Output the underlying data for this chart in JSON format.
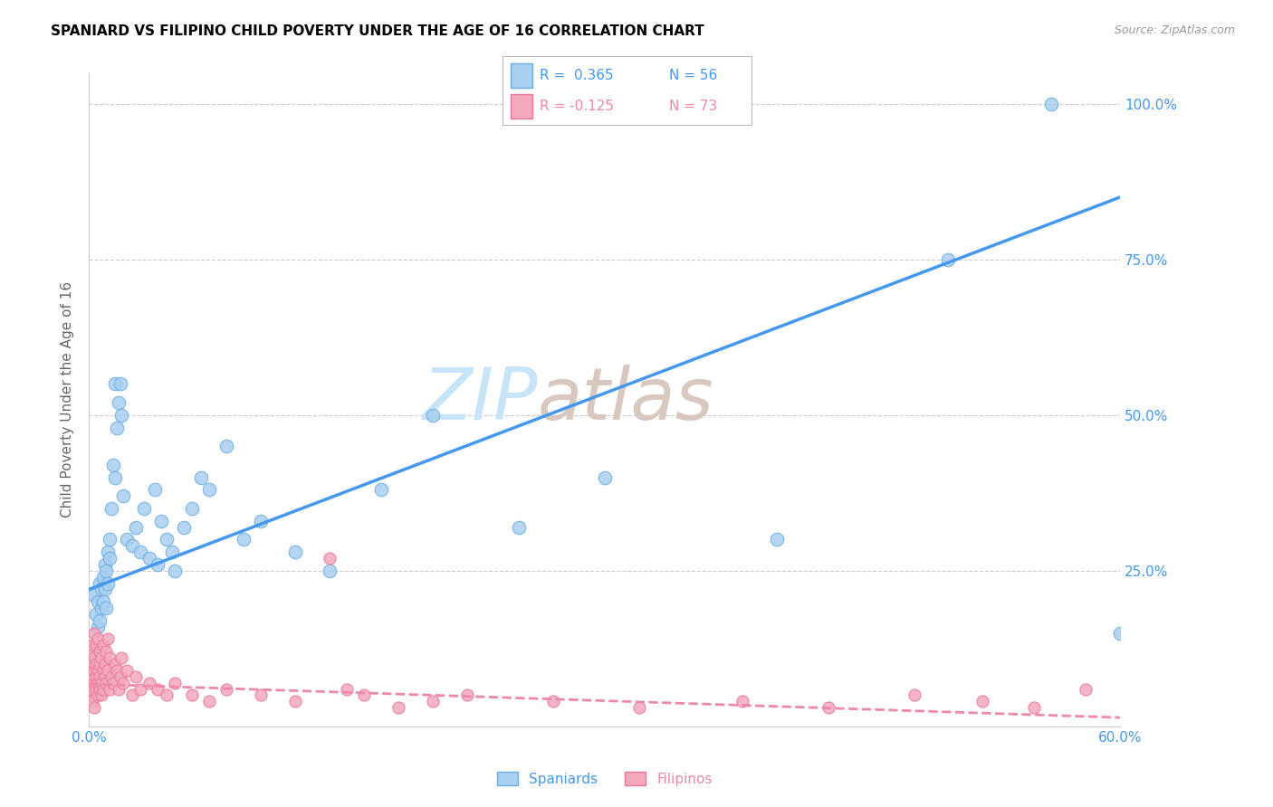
{
  "title": "SPANIARD VS FILIPINO CHILD POVERTY UNDER THE AGE OF 16 CORRELATION CHART",
  "source": "Source: ZipAtlas.com",
  "ylabel": "Child Poverty Under the Age of 16",
  "xlim": [
    0.0,
    0.6
  ],
  "ylim": [
    0.0,
    1.05
  ],
  "xticks": [
    0.0,
    0.1,
    0.2,
    0.3,
    0.4,
    0.5,
    0.6
  ],
  "xticklabels": [
    "0.0%",
    "",
    "",
    "",
    "",
    "",
    "60.0%"
  ],
  "yticks": [
    0.0,
    0.25,
    0.5,
    0.75,
    1.0
  ],
  "yticklabels": [
    "",
    "25.0%",
    "50.0%",
    "75.0%",
    "100.0%"
  ],
  "legend_blue_r": "R =  0.365",
  "legend_blue_n": "N = 56",
  "legend_pink_r": "R = -0.125",
  "legend_pink_n": "N = 73",
  "legend_labels": [
    "Spaniards",
    "Filipinos"
  ],
  "blue_color": "#A8CEF0",
  "pink_color": "#F4A8BC",
  "blue_edge_color": "#6AAEE0",
  "pink_edge_color": "#E87898",
  "blue_line_color": "#4499EE",
  "pink_line_color": "#EE88AA",
  "watermark_zip_color": "#C8E4F8",
  "watermark_atlas_color": "#D8C8C0",
  "blue_intercept": 0.22,
  "blue_slope": 1.05,
  "pink_intercept": 0.068,
  "pink_slope": -0.09,
  "spaniards_x": [
    0.003,
    0.004,
    0.005,
    0.005,
    0.006,
    0.006,
    0.007,
    0.007,
    0.008,
    0.008,
    0.009,
    0.009,
    0.01,
    0.01,
    0.011,
    0.011,
    0.012,
    0.012,
    0.013,
    0.014,
    0.015,
    0.015,
    0.016,
    0.017,
    0.018,
    0.019,
    0.02,
    0.022,
    0.025,
    0.027,
    0.03,
    0.032,
    0.035,
    0.038,
    0.04,
    0.042,
    0.045,
    0.048,
    0.05,
    0.055,
    0.06,
    0.065,
    0.07,
    0.08,
    0.09,
    0.1,
    0.12,
    0.14,
    0.17,
    0.2,
    0.25,
    0.3,
    0.4,
    0.5,
    0.56,
    0.6
  ],
  "spaniards_y": [
    0.21,
    0.18,
    0.2,
    0.16,
    0.23,
    0.17,
    0.22,
    0.19,
    0.24,
    0.2,
    0.26,
    0.22,
    0.25,
    0.19,
    0.28,
    0.23,
    0.3,
    0.27,
    0.35,
    0.42,
    0.4,
    0.55,
    0.48,
    0.52,
    0.55,
    0.5,
    0.37,
    0.3,
    0.29,
    0.32,
    0.28,
    0.35,
    0.27,
    0.38,
    0.26,
    0.33,
    0.3,
    0.28,
    0.25,
    0.32,
    0.35,
    0.4,
    0.38,
    0.45,
    0.3,
    0.33,
    0.28,
    0.25,
    0.38,
    0.5,
    0.32,
    0.4,
    0.3,
    0.75,
    1.0,
    0.15
  ],
  "filipinos_x": [
    0.001,
    0.001,
    0.001,
    0.002,
    0.002,
    0.002,
    0.002,
    0.003,
    0.003,
    0.003,
    0.003,
    0.003,
    0.004,
    0.004,
    0.004,
    0.004,
    0.005,
    0.005,
    0.005,
    0.005,
    0.006,
    0.006,
    0.006,
    0.006,
    0.007,
    0.007,
    0.007,
    0.008,
    0.008,
    0.008,
    0.009,
    0.009,
    0.01,
    0.01,
    0.011,
    0.011,
    0.012,
    0.012,
    0.013,
    0.014,
    0.015,
    0.016,
    0.017,
    0.018,
    0.019,
    0.02,
    0.022,
    0.025,
    0.027,
    0.03,
    0.035,
    0.04,
    0.045,
    0.05,
    0.06,
    0.07,
    0.08,
    0.1,
    0.12,
    0.15,
    0.18,
    0.22,
    0.27,
    0.32,
    0.38,
    0.43,
    0.48,
    0.52,
    0.55,
    0.58,
    0.14,
    0.16,
    0.2
  ],
  "filipinos_y": [
    0.05,
    0.08,
    0.12,
    0.06,
    0.1,
    0.04,
    0.13,
    0.07,
    0.09,
    0.11,
    0.03,
    0.15,
    0.06,
    0.1,
    0.08,
    0.13,
    0.05,
    0.09,
    0.07,
    0.14,
    0.06,
    0.1,
    0.08,
    0.12,
    0.07,
    0.11,
    0.05,
    0.09,
    0.06,
    0.13,
    0.08,
    0.1,
    0.12,
    0.07,
    0.09,
    0.14,
    0.06,
    0.11,
    0.08,
    0.07,
    0.1,
    0.09,
    0.06,
    0.08,
    0.11,
    0.07,
    0.09,
    0.05,
    0.08,
    0.06,
    0.07,
    0.06,
    0.05,
    0.07,
    0.05,
    0.04,
    0.06,
    0.05,
    0.04,
    0.06,
    0.03,
    0.05,
    0.04,
    0.03,
    0.04,
    0.03,
    0.05,
    0.04,
    0.03,
    0.06,
    0.27,
    0.05,
    0.04
  ],
  "blue_marker_size": 110,
  "pink_marker_size": 90
}
